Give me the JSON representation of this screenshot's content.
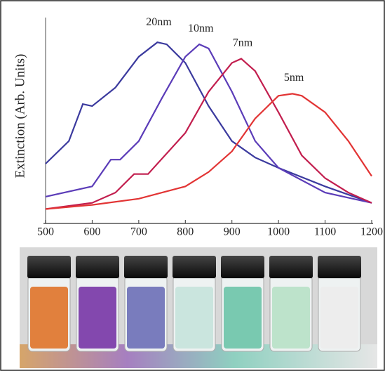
{
  "chart_data": {
    "type": "line",
    "y_label": "Extinction (Arb. Units)",
    "xlim": [
      500,
      1200
    ],
    "xticks": [
      500,
      600,
      700,
      800,
      900,
      1000,
      1100,
      1200
    ],
    "ylim": [
      0,
      100
    ],
    "series": [
      {
        "name": "20nm",
        "color": "#3b3a9e",
        "x": [
          500,
          550,
          580,
          600,
          650,
          700,
          740,
          760,
          800,
          850,
          900,
          950,
          1000,
          1100,
          1200
        ],
        "values": [
          29,
          40,
          58,
          57,
          66,
          81,
          88,
          87,
          78,
          57,
          40,
          32,
          27,
          18,
          10
        ]
      },
      {
        "name": "10nm",
        "color": "#5b3cb8",
        "x": [
          500,
          600,
          640,
          660,
          700,
          750,
          800,
          830,
          850,
          900,
          950,
          1000,
          1100,
          1200
        ],
        "values": [
          13,
          18,
          31,
          31,
          40,
          61,
          81,
          87,
          85,
          64,
          40,
          27,
          15,
          10
        ]
      },
      {
        "name": "7nm",
        "color": "#c21e4e",
        "x": [
          500,
          600,
          650,
          690,
          720,
          800,
          850,
          900,
          920,
          950,
          1000,
          1050,
          1100,
          1150,
          1200
        ],
        "values": [
          7,
          10,
          15,
          24,
          24,
          44,
          64,
          78,
          80,
          74,
          54,
          33,
          22,
          15,
          10
        ]
      },
      {
        "name": "5nm",
        "color": "#e23434",
        "x": [
          500,
          600,
          700,
          800,
          850,
          900,
          950,
          1000,
          1030,
          1050,
          1100,
          1150,
          1200
        ],
        "values": [
          7,
          9,
          12,
          18,
          25,
          35,
          51,
          62,
          63,
          62,
          54,
          40,
          23
        ]
      }
    ]
  }
}
